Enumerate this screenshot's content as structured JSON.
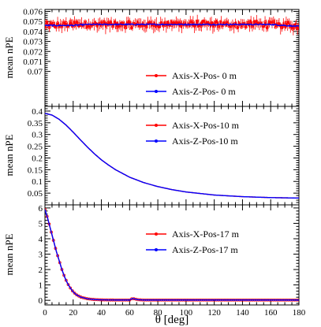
{
  "chart_data": [
    {
      "type": "line",
      "ylabel": "mean nPE",
      "xlim": [
        0,
        180
      ],
      "ylim": [
        0.0665,
        0.0762
      ],
      "yticks": [
        "0.076",
        "0.075",
        "0.074",
        "0.073",
        "0.072",
        "0.071",
        "0.07"
      ],
      "ytick_values": [
        0.076,
        0.075,
        0.074,
        0.073,
        0.072,
        0.071,
        0.07
      ],
      "legend_position": "center-right",
      "series": [
        {
          "name": "Axis-X-Pos- 0 m",
          "color": "#ff0000",
          "marker": "open-circle",
          "error_bars": true,
          "x": [
            0,
            10,
            20,
            30,
            40,
            50,
            60,
            70,
            80,
            90,
            100,
            110,
            120,
            130,
            140,
            150,
            160,
            170,
            180
          ],
          "y": [
            0.0746,
            0.0746,
            0.0747,
            0.0747,
            0.0747,
            0.0747,
            0.0747,
            0.0747,
            0.0747,
            0.0748,
            0.0747,
            0.0747,
            0.0747,
            0.0747,
            0.0747,
            0.0747,
            0.0747,
            0.0746,
            0.0745
          ],
          "error": 0.0006
        },
        {
          "name": "Axis-Z-Pos- 0 m",
          "color": "#0000ff",
          "marker": "dot",
          "x": [
            0,
            10,
            20,
            30,
            40,
            50,
            60,
            70,
            80,
            90,
            100,
            110,
            120,
            130,
            140,
            150,
            160,
            170,
            180
          ],
          "y": [
            0.0746,
            0.0746,
            0.0746,
            0.0747,
            0.0747,
            0.0747,
            0.0747,
            0.0747,
            0.0747,
            0.0747,
            0.0747,
            0.0747,
            0.0747,
            0.0747,
            0.0747,
            0.0747,
            0.0747,
            0.0746,
            0.0745
          ]
        }
      ]
    },
    {
      "type": "line",
      "ylabel": "mean nPE",
      "xlim": [
        0,
        180
      ],
      "ylim": [
        0.0,
        0.42
      ],
      "yticks": [
        "0.4",
        "0.35",
        "0.3",
        "0.25",
        "0.2",
        "0.15",
        "0.1",
        "0.05"
      ],
      "ytick_values": [
        0.4,
        0.35,
        0.3,
        0.25,
        0.2,
        0.15,
        0.1,
        0.05
      ],
      "legend_position": "top-right",
      "series": [
        {
          "name": "Axis-X-Pos-10 m",
          "color": "#ff0000",
          "marker": "dot",
          "x": [
            0,
            5,
            10,
            15,
            20,
            25,
            30,
            35,
            40,
            45,
            50,
            60,
            70,
            80,
            90,
            100,
            120,
            140,
            160,
            180
          ],
          "y": [
            0.39,
            0.383,
            0.365,
            0.34,
            0.31,
            0.278,
            0.247,
            0.218,
            0.192,
            0.17,
            0.15,
            0.118,
            0.095,
            0.078,
            0.065,
            0.055,
            0.042,
            0.035,
            0.031,
            0.029
          ]
        },
        {
          "name": "Axis-Z-Pos-10 m",
          "color": "#0000ff",
          "marker": "dot",
          "x": [
            0,
            5,
            10,
            15,
            20,
            25,
            30,
            35,
            40,
            45,
            50,
            60,
            70,
            80,
            90,
            100,
            120,
            140,
            160,
            180
          ],
          "y": [
            0.39,
            0.383,
            0.365,
            0.34,
            0.31,
            0.278,
            0.247,
            0.218,
            0.192,
            0.17,
            0.15,
            0.118,
            0.095,
            0.078,
            0.065,
            0.055,
            0.042,
            0.035,
            0.031,
            0.029
          ]
        }
      ]
    },
    {
      "type": "line",
      "xlabel": "θ [deg]",
      "ylabel": "mean nPE",
      "xlim": [
        0,
        180
      ],
      "ylim": [
        -0.3,
        6.2
      ],
      "xticks": [
        "0",
        "20",
        "40",
        "60",
        "80",
        "100",
        "120",
        "140",
        "160",
        "180"
      ],
      "xtick_values": [
        0,
        20,
        40,
        60,
        80,
        100,
        120,
        140,
        160,
        180
      ],
      "yticks": [
        "6",
        "5",
        "4",
        "3",
        "2",
        "1",
        "0"
      ],
      "ytick_values": [
        6,
        5,
        4,
        3,
        2,
        1,
        0
      ],
      "legend_position": "top-right",
      "series": [
        {
          "name": "Axis-X-Pos-17 m",
          "color": "#ff0000",
          "marker": "open-circle",
          "x": [
            0,
            2,
            4,
            6,
            8,
            10,
            12,
            14,
            16,
            18,
            20,
            22,
            25,
            30,
            35,
            40,
            50,
            60,
            62,
            64,
            66,
            70,
            80,
            100,
            120,
            140,
            160,
            180
          ],
          "y": [
            5.9,
            5.3,
            4.6,
            3.9,
            3.2,
            2.6,
            2.0,
            1.5,
            1.1,
            0.8,
            0.55,
            0.38,
            0.22,
            0.1,
            0.05,
            0.03,
            0.02,
            0.02,
            0.12,
            0.08,
            0.04,
            0.02,
            0.02,
            0.02,
            0.02,
            0.02,
            0.02,
            0.02
          ]
        },
        {
          "name": "Axis-Z-Pos-17 m",
          "color": "#0000ff",
          "marker": "dot",
          "x": [
            0,
            2,
            4,
            6,
            8,
            10,
            12,
            14,
            16,
            18,
            20,
            22,
            25,
            30,
            35,
            40,
            50,
            60,
            62,
            64,
            66,
            70,
            80,
            100,
            120,
            140,
            160,
            180
          ],
          "y": [
            5.9,
            5.3,
            4.6,
            3.9,
            3.2,
            2.6,
            2.0,
            1.5,
            1.1,
            0.8,
            0.55,
            0.38,
            0.22,
            0.1,
            0.05,
            0.03,
            0.02,
            0.02,
            0.12,
            0.08,
            0.04,
            0.02,
            0.02,
            0.02,
            0.02,
            0.02,
            0.02,
            0.02
          ]
        }
      ]
    }
  ]
}
